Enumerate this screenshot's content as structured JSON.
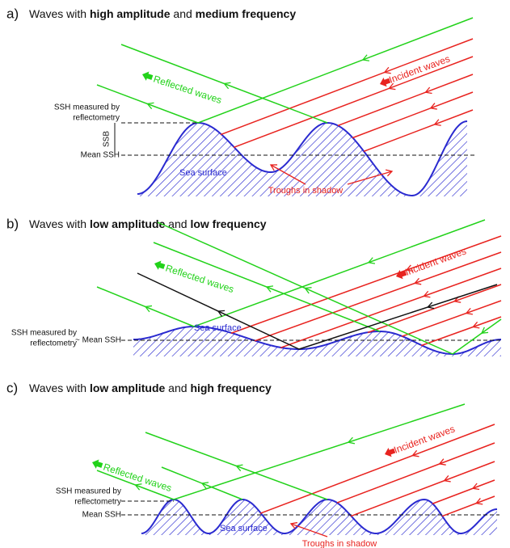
{
  "panels": [
    {
      "label": "a)",
      "title": [
        {
          "text": "Waves with ",
          "bold": false
        },
        {
          "text": "high amplitude",
          "bold": true
        },
        {
          "text": " and ",
          "bold": false
        },
        {
          "text": "medium frequency",
          "bold": true
        }
      ],
      "reflected": "Reflected waves",
      "incident": "Incident waves",
      "ssh_measured": [
        "SSH measured by",
        "reflectometry"
      ],
      "ssb": "SSB",
      "mean_ssh": "Mean SSH",
      "sea_surface": "Sea surface",
      "troughs": "Troughs in shadow"
    },
    {
      "label": "b)",
      "title": [
        {
          "text": "Waves with ",
          "bold": false
        },
        {
          "text": "low amplitude",
          "bold": true
        },
        {
          "text": " and ",
          "bold": false
        },
        {
          "text": "low frequency",
          "bold": true
        }
      ],
      "reflected": "Reflected waves",
      "incident": "Incident waves",
      "ssh_measured": [
        "SSH measured by",
        "reflectometry"
      ],
      "mean_ssh": "~ Mean SSH",
      "sea_surface": "Sea surface"
    },
    {
      "label": "c)",
      "title": [
        {
          "text": "Waves with ",
          "bold": false
        },
        {
          "text": "low amplitude",
          "bold": true
        },
        {
          "text": " and ",
          "bold": false
        },
        {
          "text": "high frequency",
          "bold": true
        }
      ],
      "reflected": "Reflected waves",
      "incident": "Incident waves",
      "ssh_measured": [
        "SSH measured by",
        "reflectometry"
      ],
      "mean_ssh": "Mean SSH",
      "sea_surface": "Sea surface",
      "troughs": "Troughs in shadow"
    }
  ]
}
